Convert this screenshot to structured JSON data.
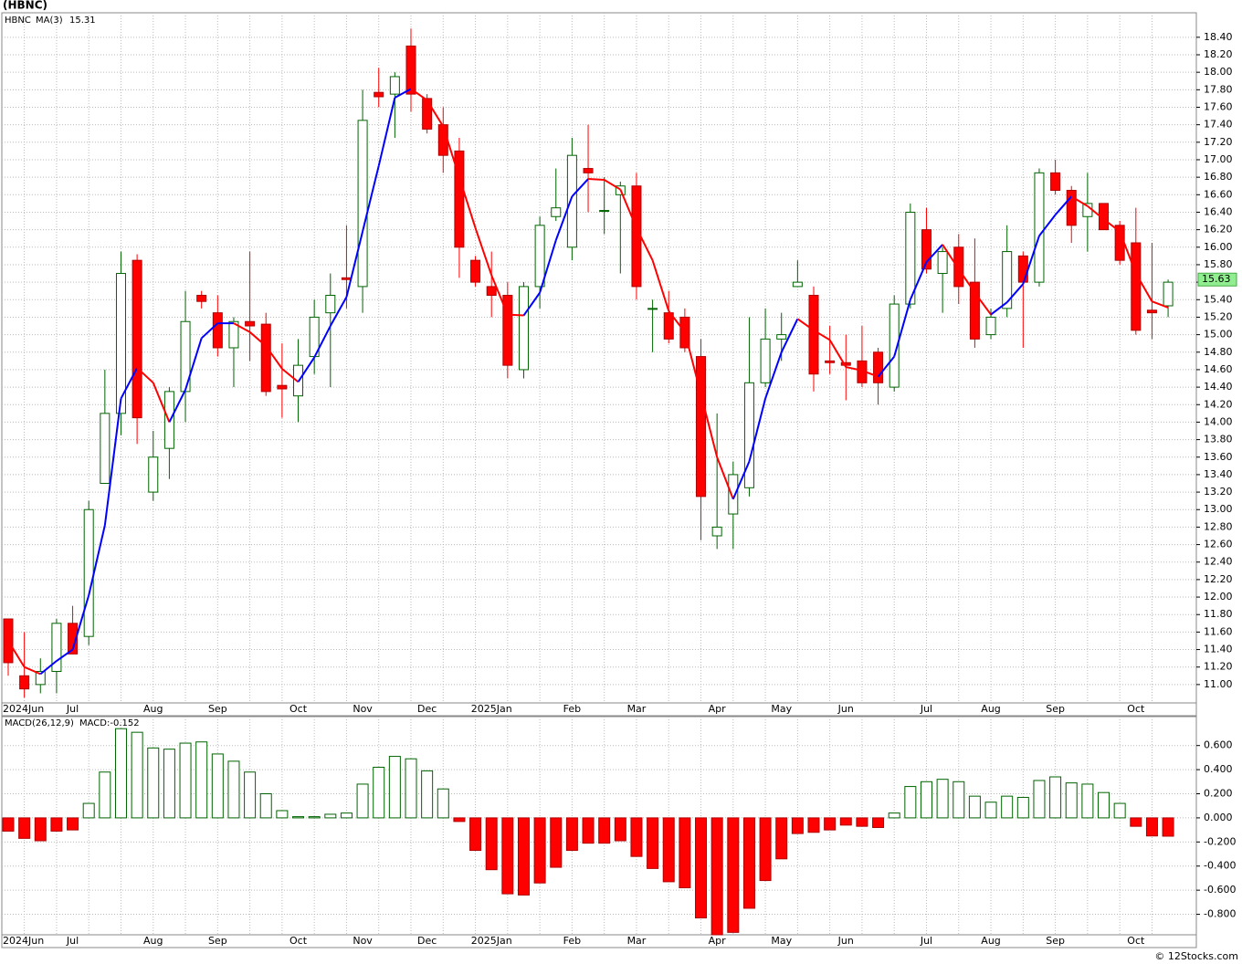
{
  "chart_data": [
    {
      "type": "candlestick",
      "title": "(HBNC)",
      "categories": [
        "2024Jun",
        null,
        null,
        null,
        "Jul",
        null,
        null,
        null,
        null,
        "Aug",
        null,
        null,
        null,
        "Sep",
        null,
        null,
        null,
        null,
        "Oct",
        null,
        null,
        null,
        "Nov",
        null,
        null,
        null,
        "Dec",
        null,
        null,
        null,
        "2025Jan",
        null,
        null,
        null,
        null,
        "Feb",
        null,
        null,
        null,
        "Mar",
        null,
        null,
        null,
        null,
        "Apr",
        null,
        null,
        null,
        "May",
        null,
        null,
        null,
        "Jun",
        null,
        null,
        null,
        null,
        "Jul",
        null,
        null,
        null,
        "Aug",
        null,
        null,
        null,
        "Sep",
        null,
        null,
        null,
        null,
        "Oct",
        null,
        null
      ],
      "series": [
        {
          "name": "HBNC",
          "up_color": "#006400",
          "down_color": "#ff0000",
          "open": [
            11.75,
            11.1,
            11.0,
            11.15,
            11.7,
            11.55,
            13.3,
            14.1,
            15.85,
            13.2,
            13.7,
            14.35,
            15.45,
            15.25,
            14.85,
            15.15,
            15.12,
            14.42,
            14.3,
            14.75,
            15.25,
            15.65,
            15.55,
            17.77,
            17.75,
            18.3,
            17.7,
            17.4,
            17.1,
            15.85,
            15.55,
            15.45,
            14.6,
            15.55,
            16.35,
            16.0,
            16.9,
            16.42,
            16.6,
            16.7,
            15.3,
            15.25,
            15.2,
            14.75,
            12.7,
            12.95,
            13.25,
            14.45,
            14.95,
            15.55,
            15.45,
            14.7,
            14.68,
            14.7,
            14.8,
            14.4,
            15.35,
            16.2,
            15.7,
            16.0,
            15.6,
            15.0,
            15.3,
            15.9,
            15.6,
            16.85,
            16.65,
            16.35,
            16.5,
            16.25,
            16.05,
            15.28,
            15.33
          ],
          "high": [
            11.75,
            11.6,
            11.3,
            11.75,
            11.9,
            13.1,
            14.6,
            15.95,
            15.92,
            13.9,
            14.4,
            15.5,
            15.5,
            15.45,
            15.2,
            15.95,
            15.25,
            14.9,
            14.95,
            15.4,
            15.7,
            16.25,
            17.8,
            18.05,
            18.0,
            18.5,
            17.75,
            17.6,
            17.25,
            15.9,
            15.95,
            15.6,
            15.6,
            16.35,
            16.9,
            17.25,
            17.4,
            16.8,
            16.75,
            16.85,
            15.4,
            15.5,
            15.3,
            14.95,
            14.1,
            13.55,
            15.2,
            15.3,
            15.25,
            15.85,
            15.55,
            15.1,
            15.0,
            15.1,
            14.85,
            15.45,
            16.5,
            16.45,
            16.0,
            16.15,
            16.1,
            15.3,
            16.25,
            15.95,
            16.9,
            17.0,
            16.7,
            16.85,
            16.5,
            16.3,
            16.45,
            16.05,
            15.63
          ],
          "low": [
            11.1,
            10.85,
            10.9,
            10.9,
            11.35,
            11.45,
            13.3,
            13.85,
            13.75,
            13.1,
            13.35,
            14.0,
            15.3,
            14.75,
            14.4,
            14.7,
            14.3,
            14.05,
            14.0,
            14.55,
            14.4,
            15.3,
            15.25,
            17.6,
            17.25,
            17.55,
            17.3,
            16.85,
            15.65,
            15.55,
            15.2,
            14.5,
            14.5,
            15.3,
            16.3,
            15.85,
            16.4,
            16.15,
            15.7,
            15.4,
            14.8,
            14.9,
            14.8,
            12.65,
            12.55,
            12.55,
            13.15,
            14.4,
            14.7,
            15.55,
            14.35,
            14.55,
            14.25,
            14.4,
            14.2,
            14.35,
            15.3,
            15.7,
            15.25,
            15.35,
            14.85,
            14.95,
            15.2,
            14.85,
            15.55,
            16.6,
            16.05,
            15.95,
            16.2,
            15.8,
            15.0,
            14.95,
            15.2
          ],
          "close": [
            11.25,
            10.95,
            11.15,
            11.7,
            11.35,
            13.0,
            14.1,
            15.7,
            14.05,
            13.6,
            14.35,
            15.15,
            15.38,
            14.85,
            15.15,
            15.1,
            14.35,
            14.38,
            14.65,
            15.2,
            15.45,
            15.63,
            17.45,
            17.72,
            17.95,
            17.75,
            17.35,
            17.05,
            16.0,
            15.6,
            15.45,
            14.65,
            15.55,
            16.25,
            16.45,
            17.05,
            16.85,
            16.42,
            16.7,
            15.55,
            15.3,
            14.95,
            14.85,
            13.15,
            12.8,
            13.4,
            14.45,
            14.95,
            15.0,
            15.6,
            14.55,
            14.68,
            14.65,
            14.45,
            14.45,
            15.35,
            16.4,
            15.75,
            15.95,
            15.55,
            14.95,
            15.2,
            15.95,
            15.6,
            16.85,
            16.65,
            16.25,
            16.5,
            16.2,
            15.85,
            15.05,
            15.25,
            15.6
          ]
        },
        {
          "name": "MA(3)",
          "color": "#0000ff",
          "down_color": "#ff0000",
          "last_value": 15.31,
          "values": [
            11.5,
            11.2,
            11.12,
            11.27,
            11.4,
            12.02,
            12.82,
            14.27,
            14.62,
            14.45,
            14.0,
            14.37,
            14.96,
            15.13,
            15.13,
            15.03,
            14.87,
            14.61,
            14.46,
            14.74,
            15.1,
            15.43,
            16.18,
            16.93,
            17.71,
            17.81,
            17.68,
            17.38,
            16.8,
            16.22,
            15.68,
            15.23,
            15.22,
            15.48,
            16.08,
            16.58,
            16.78,
            16.77,
            16.66,
            16.22,
            15.85,
            15.27,
            15.03,
            14.32,
            13.6,
            13.12,
            13.55,
            14.27,
            14.8,
            15.18,
            15.05,
            14.94,
            14.63,
            14.59,
            14.52,
            14.75,
            15.4,
            15.83,
            16.03,
            15.75,
            15.48,
            15.23,
            15.37,
            15.58,
            16.13,
            16.37,
            16.58,
            16.47,
            16.32,
            16.18,
            15.7,
            15.38,
            15.31
          ]
        }
      ],
      "last_price": 15.63,
      "last_price_color": "#90ee90",
      "ylim": [
        10.79,
        18.68
      ],
      "yticks": [
        {
          "value": 11,
          "label": "11.00"
        },
        {
          "value": 11.2,
          "label": "11.20"
        },
        {
          "value": 11.4,
          "label": "11.40"
        },
        {
          "value": 11.6,
          "label": "11.60"
        },
        {
          "value": 11.8,
          "label": "11.80"
        },
        {
          "value": 12,
          "label": "12.00"
        },
        {
          "value": 12.2,
          "label": "12.20"
        },
        {
          "value": 12.4,
          "label": "12.40"
        },
        {
          "value": 12.6,
          "label": "12.60"
        },
        {
          "value": 12.8,
          "label": "12.80"
        },
        {
          "value": 13,
          "label": "13.00"
        },
        {
          "value": 13.2,
          "label": "13.20"
        },
        {
          "value": 13.4,
          "label": "13.40"
        },
        {
          "value": 13.6,
          "label": "13.60"
        },
        {
          "value": 13.8,
          "label": "13.80"
        },
        {
          "value": 14,
          "label": "14.00"
        },
        {
          "value": 14.2,
          "label": "14.20"
        },
        {
          "value": 14.4,
          "label": "14.40"
        },
        {
          "value": 14.6,
          "label": "14.60"
        },
        {
          "value": 14.8,
          "label": "14.80"
        },
        {
          "value": 15,
          "label": "15.00"
        },
        {
          "value": 15.2,
          "label": "15.20"
        },
        {
          "value": 15.4,
          "label": "15.40"
        },
        {
          "value": 15.6,
          "label": "15.60"
        },
        {
          "value": 15.8,
          "label": "15.80"
        },
        {
          "value": 16,
          "label": "16.00"
        },
        {
          "value": 16.2,
          "label": "16.20"
        },
        {
          "value": 16.4,
          "label": "16.40"
        },
        {
          "value": 16.6,
          "label": "16.60"
        },
        {
          "value": 16.8,
          "label": "16.80"
        },
        {
          "value": 17,
          "label": "17.00"
        },
        {
          "value": 17.2,
          "label": "17.20"
        },
        {
          "value": 17.4,
          "label": "17.40"
        },
        {
          "value": 17.6,
          "label": "17.60"
        },
        {
          "value": 17.8,
          "label": "17.80"
        },
        {
          "value": 18,
          "label": "18.00"
        },
        {
          "value": 18.2,
          "label": "18.20"
        },
        {
          "value": 18.4,
          "label": "18.40"
        }
      ],
      "grid": true
    },
    {
      "type": "bar",
      "title": "MACD(26,12,9)",
      "series": [
        {
          "name": "MACD:-0.152",
          "up_color": "#006400",
          "down_color": "#ff0000",
          "values": [
            -0.11,
            -0.17,
            -0.19,
            -0.11,
            -0.1,
            0.12,
            0.38,
            0.74,
            0.71,
            0.58,
            0.57,
            0.62,
            0.63,
            0.53,
            0.47,
            0.38,
            0.2,
            0.06,
            0.01,
            0.01,
            0.03,
            0.04,
            0.28,
            0.42,
            0.51,
            0.49,
            0.39,
            0.24,
            -0.03,
            -0.27,
            -0.43,
            -0.63,
            -0.64,
            -0.54,
            -0.41,
            -0.27,
            -0.21,
            -0.21,
            -0.19,
            -0.32,
            -0.42,
            -0.53,
            -0.58,
            -0.83,
            -0.97,
            -0.95,
            -0.75,
            -0.52,
            -0.34,
            -0.13,
            -0.12,
            -0.1,
            -0.06,
            -0.07,
            -0.08,
            0.04,
            0.26,
            0.3,
            0.32,
            0.3,
            0.18,
            0.13,
            0.18,
            0.17,
            0.31,
            0.34,
            0.29,
            0.28,
            0.21,
            0.12,
            -0.07,
            -0.15,
            -0.152
          ]
        }
      ],
      "ylim": [
        -0.97,
        0.84
      ],
      "yticks": [
        {
          "value": -0.8,
          "label": "-0.800"
        },
        {
          "value": -0.6,
          "label": "-0.600"
        },
        {
          "value": -0.4,
          "label": "-0.400"
        },
        {
          "value": -0.2,
          "label": "-0.200"
        },
        {
          "value": 0,
          "label": "0.000"
        },
        {
          "value": 0.2,
          "label": "0.200"
        },
        {
          "value": 0.4,
          "label": "0.400"
        },
        {
          "value": 0.6,
          "label": "0.600"
        }
      ],
      "grid": true
    }
  ],
  "footer": "© 12Stocks.com"
}
